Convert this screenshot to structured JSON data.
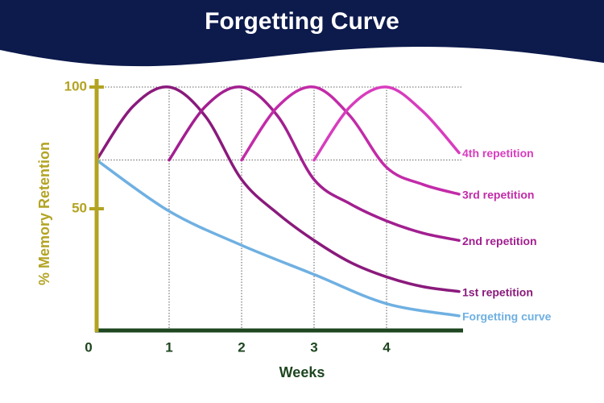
{
  "chart_data": {
    "type": "line",
    "title": "Forgetting Curve",
    "x_label": "Weeks",
    "y_label": "% Memory Retention",
    "xlim": [
      0,
      5
    ],
    "ylim": [
      0,
      100
    ],
    "xticks": [
      0,
      1,
      2,
      3,
      4
    ],
    "yticks": [
      50,
      100
    ],
    "guide_y": [
      100,
      70
    ],
    "series": [
      {
        "name": "Forgetting curve",
        "color": "#6fb0e2",
        "x": [
          0,
          1,
          2,
          3,
          4,
          5
        ],
        "values": [
          70,
          49,
          35,
          23,
          11,
          6
        ]
      },
      {
        "name": "1st repetition",
        "color": "#8a1a7c",
        "x": [
          0,
          0.5,
          1,
          1.5,
          2,
          2.5,
          3,
          3.5,
          4,
          4.5,
          5
        ],
        "values": [
          70,
          92,
          100,
          88,
          62,
          48,
          37,
          28,
          22,
          18,
          16
        ]
      },
      {
        "name": "2nd repetition",
        "color": "#a21f90",
        "x": [
          1,
          1.5,
          2,
          2.5,
          3,
          3.5,
          4,
          4.5,
          5
        ],
        "values": [
          70,
          92,
          100,
          88,
          62,
          52,
          45,
          40,
          37
        ]
      },
      {
        "name": "3rd repetition",
        "color": "#c22ba8",
        "x": [
          2,
          2.5,
          3,
          3.5,
          4,
          4.5,
          5
        ],
        "values": [
          70,
          92,
          100,
          88,
          67,
          60,
          56
        ]
      },
      {
        "name": "4th repetition",
        "color": "#d83cbe",
        "x": [
          3,
          3.5,
          4,
          4.5,
          5
        ],
        "values": [
          70,
          92,
          100,
          90,
          73
        ]
      }
    ]
  }
}
